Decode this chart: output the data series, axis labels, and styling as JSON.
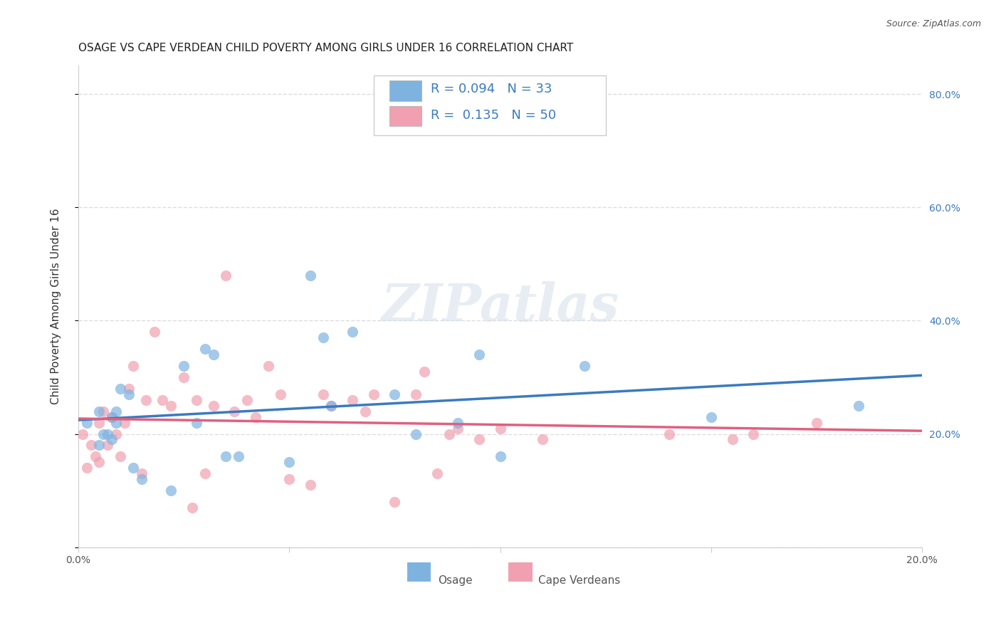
{
  "title": "OSAGE VS CAPE VERDEAN CHILD POVERTY AMONG GIRLS UNDER 16 CORRELATION CHART",
  "source": "Source: ZipAtlas.com",
  "ylabel": "Child Poverty Among Girls Under 16",
  "xlim": [
    0.0,
    0.2
  ],
  "ylim": [
    0.0,
    0.85
  ],
  "osage_color": "#7eb3e0",
  "cape_verdean_color": "#f0a0b0",
  "osage_line_color": "#3a7bbf",
  "cape_verdean_line_color": "#e06080",
  "background_color": "#ffffff",
  "grid_color": "#dddddd",
  "osage_x": [
    0.002,
    0.005,
    0.005,
    0.006,
    0.007,
    0.008,
    0.008,
    0.009,
    0.009,
    0.01,
    0.012,
    0.013,
    0.015,
    0.022,
    0.025,
    0.028,
    0.03,
    0.032,
    0.035,
    0.038,
    0.05,
    0.055,
    0.058,
    0.06,
    0.065,
    0.075,
    0.08,
    0.09,
    0.095,
    0.1,
    0.12,
    0.15,
    0.185
  ],
  "osage_y": [
    0.22,
    0.18,
    0.24,
    0.2,
    0.2,
    0.23,
    0.19,
    0.22,
    0.24,
    0.28,
    0.27,
    0.14,
    0.12,
    0.1,
    0.32,
    0.22,
    0.35,
    0.34,
    0.16,
    0.16,
    0.15,
    0.48,
    0.37,
    0.25,
    0.38,
    0.27,
    0.2,
    0.22,
    0.34,
    0.16,
    0.32,
    0.23,
    0.25
  ],
  "cape_verdean_x": [
    0.001,
    0.002,
    0.003,
    0.004,
    0.005,
    0.005,
    0.006,
    0.007,
    0.008,
    0.009,
    0.01,
    0.011,
    0.012,
    0.013,
    0.015,
    0.016,
    0.018,
    0.02,
    0.022,
    0.025,
    0.027,
    0.028,
    0.03,
    0.032,
    0.035,
    0.037,
    0.04,
    0.042,
    0.045,
    0.048,
    0.05,
    0.055,
    0.058,
    0.06,
    0.065,
    0.068,
    0.07,
    0.075,
    0.08,
    0.082,
    0.085,
    0.088,
    0.09,
    0.095,
    0.1,
    0.11,
    0.14,
    0.155,
    0.16,
    0.175
  ],
  "cape_verdean_y": [
    0.2,
    0.14,
    0.18,
    0.16,
    0.22,
    0.15,
    0.24,
    0.18,
    0.23,
    0.2,
    0.16,
    0.22,
    0.28,
    0.32,
    0.13,
    0.26,
    0.38,
    0.26,
    0.25,
    0.3,
    0.07,
    0.26,
    0.13,
    0.25,
    0.48,
    0.24,
    0.26,
    0.23,
    0.32,
    0.27,
    0.12,
    0.11,
    0.27,
    0.25,
    0.26,
    0.24,
    0.27,
    0.08,
    0.27,
    0.31,
    0.13,
    0.2,
    0.21,
    0.19,
    0.21,
    0.19,
    0.2,
    0.19,
    0.2,
    0.22
  ],
  "watermark": "ZIPatlas",
  "title_fontsize": 11,
  "axis_label_fontsize": 11,
  "tick_fontsize": 10,
  "legend_fontsize": 13,
  "marker_size": 120,
  "marker_alpha": 0.7,
  "line_width": 2.5
}
